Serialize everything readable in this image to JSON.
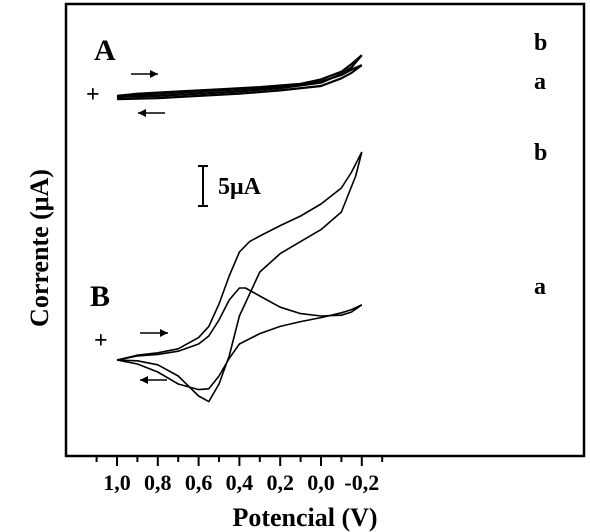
{
  "chart_data": {
    "type": "line",
    "title": "",
    "xlabel": "Potencial (V)",
    "ylabel": "Corrente (μA)",
    "xlim": [
      1.05,
      -0.3
    ],
    "x_reversed": true,
    "x_ticks": [
      1.0,
      0.8,
      0.6,
      0.4,
      0.2,
      0.0,
      -0.2
    ],
    "x_tick_labels": [
      "1,0",
      "0,8",
      "0,6",
      "0,4",
      "0,2",
      "0,0",
      "-0,2"
    ],
    "y_ticks_shown": false,
    "scale_bar": {
      "label": "5μA",
      "value_uA": 5
    },
    "panels": [
      {
        "label": "A",
        "sign": "+",
        "series": [
          {
            "name": "a",
            "forward": [
              [
                1.0,
                0.0
              ],
              [
                0.9,
                0.2
              ],
              [
                0.7,
                0.4
              ],
              [
                0.5,
                0.6
              ],
              [
                0.3,
                0.8
              ],
              [
                0.1,
                1.1
              ],
              [
                0.0,
                1.4
              ],
              [
                -0.1,
                2.0
              ],
              [
                -0.15,
                2.5
              ],
              [
                -0.2,
                2.9
              ]
            ],
            "reverse": [
              [
                -0.2,
                2.9
              ],
              [
                -0.15,
                2.2
              ],
              [
                -0.1,
                1.7
              ],
              [
                0.0,
                1.0
              ],
              [
                0.2,
                0.6
              ],
              [
                0.4,
                0.3
              ],
              [
                0.6,
                0.1
              ],
              [
                0.8,
                -0.1
              ],
              [
                1.0,
                -0.2
              ]
            ]
          },
          {
            "name": "b",
            "forward": [
              [
                1.0,
                0.1
              ],
              [
                0.9,
                0.3
              ],
              [
                0.7,
                0.5
              ],
              [
                0.5,
                0.7
              ],
              [
                0.3,
                0.9
              ],
              [
                0.1,
                1.2
              ],
              [
                0.0,
                1.6
              ],
              [
                -0.1,
                2.3
              ],
              [
                -0.15,
                3.0
              ],
              [
                -0.2,
                3.8
              ]
            ],
            "reverse": [
              [
                -0.2,
                3.8
              ],
              [
                -0.15,
                2.7
              ],
              [
                -0.1,
                2.1
              ],
              [
                0.0,
                1.3
              ],
              [
                0.2,
                0.8
              ],
              [
                0.4,
                0.5
              ],
              [
                0.6,
                0.3
              ],
              [
                0.8,
                0.1
              ],
              [
                1.0,
                0.0
              ]
            ]
          }
        ]
      },
      {
        "label": "B",
        "sign": "+",
        "series": [
          {
            "name": "a",
            "forward": [
              [
                1.0,
                0.0
              ],
              [
                0.9,
                0.5
              ],
              [
                0.8,
                0.7
              ],
              [
                0.7,
                1.1
              ],
              [
                0.6,
                2.0
              ],
              [
                0.55,
                3.0
              ],
              [
                0.5,
                5.0
              ],
              [
                0.45,
                7.5
              ],
              [
                0.4,
                9.0
              ],
              [
                0.37,
                9.0
              ],
              [
                0.3,
                8.0
              ],
              [
                0.2,
                6.6
              ],
              [
                0.1,
                5.8
              ],
              [
                0.0,
                5.5
              ],
              [
                -0.1,
                5.6
              ],
              [
                -0.15,
                6.0
              ],
              [
                -0.2,
                6.9
              ]
            ],
            "reverse": [
              [
                -0.2,
                6.9
              ],
              [
                -0.15,
                6.3
              ],
              [
                -0.1,
                5.9
              ],
              [
                0.0,
                5.3
              ],
              [
                0.1,
                4.8
              ],
              [
                0.2,
                4.2
              ],
              [
                0.3,
                3.3
              ],
              [
                0.4,
                2.0
              ],
              [
                0.45,
                0.2
              ],
              [
                0.5,
                -2.0
              ],
              [
                0.55,
                -3.6
              ],
              [
                0.6,
                -3.7
              ],
              [
                0.7,
                -3.0
              ],
              [
                0.8,
                -1.5
              ],
              [
                0.9,
                -0.5
              ],
              [
                1.0,
                0.0
              ]
            ]
          },
          {
            "name": "b",
            "forward": [
              [
                1.0,
                0.0
              ],
              [
                0.9,
                0.6
              ],
              [
                0.8,
                0.9
              ],
              [
                0.7,
                1.4
              ],
              [
                0.6,
                2.8
              ],
              [
                0.55,
                4.2
              ],
              [
                0.5,
                7.0
              ],
              [
                0.45,
                10.5
              ],
              [
                0.4,
                13.5
              ],
              [
                0.35,
                14.8
              ],
              [
                0.3,
                15.5
              ],
              [
                0.2,
                16.8
              ],
              [
                0.1,
                18.0
              ],
              [
                0.0,
                19.5
              ],
              [
                -0.1,
                21.5
              ],
              [
                -0.15,
                23.5
              ],
              [
                -0.2,
                26.0
              ]
            ],
            "reverse": [
              [
                -0.2,
                26.0
              ],
              [
                -0.17,
                23.0
              ],
              [
                -0.1,
                18.5
              ],
              [
                0.0,
                16.3
              ],
              [
                0.1,
                14.8
              ],
              [
                0.2,
                13.3
              ],
              [
                0.3,
                11.0
              ],
              [
                0.4,
                5.5
              ],
              [
                0.45,
                0.5
              ],
              [
                0.5,
                -3.0
              ],
              [
                0.55,
                -5.2
              ],
              [
                0.6,
                -4.5
              ],
              [
                0.7,
                -2.0
              ],
              [
                0.8,
                -0.6
              ],
              [
                0.9,
                -0.1
              ],
              [
                1.0,
                0.0
              ]
            ]
          }
        ]
      }
    ]
  }
}
